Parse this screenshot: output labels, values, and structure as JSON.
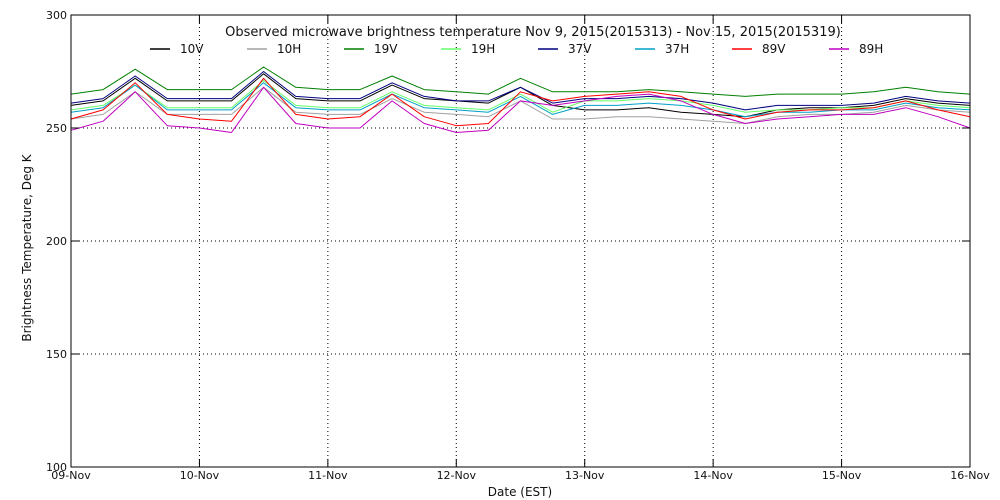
{
  "chart_data": {
    "type": "line",
    "title": "Observed microwave brightness temperature Nov  9, 2015(2015313) - Nov 15, 2015(2015319)",
    "xlabel": "Date (EST)",
    "ylabel": "Brightness Temperature, Deg K",
    "ylim": [
      100,
      300
    ],
    "yticks": [
      100,
      150,
      200,
      250,
      300
    ],
    "xlim": [
      0,
      7
    ],
    "xtick_positions": [
      0,
      1,
      2,
      3,
      4,
      5,
      6,
      7
    ],
    "xtick_labels": [
      "09-Nov",
      "10-Nov",
      "11-Nov",
      "12-Nov",
      "13-Nov",
      "14-Nov",
      "15-Nov",
      "16-Nov"
    ],
    "grid": true,
    "legend_position": "top",
    "x": [
      0,
      0.25,
      0.5,
      0.75,
      1,
      1.25,
      1.5,
      1.75,
      2,
      2.25,
      2.5,
      2.75,
      3,
      3.25,
      3.5,
      3.75,
      4,
      4.25,
      4.5,
      4.75,
      5,
      5.25,
      5.5,
      5.75,
      6,
      6.25,
      6.5,
      6.75,
      7
    ],
    "series": [
      {
        "name": "10V",
        "color": "#000000",
        "values": [
          260,
          262,
          272,
          262,
          262,
          262,
          274,
          263,
          262,
          262,
          269,
          263,
          262,
          261,
          268,
          260,
          258,
          258,
          259,
          257,
          256,
          255,
          258,
          259,
          259,
          260,
          263,
          261,
          260
        ]
      },
      {
        "name": "10H",
        "color": "#a0a0a0",
        "values": [
          254,
          256,
          266,
          256,
          256,
          256,
          268,
          257,
          256,
          256,
          263,
          257,
          256,
          255,
          262,
          254,
          254,
          255,
          255,
          254,
          253,
          252,
          255,
          256,
          256,
          257,
          260,
          258,
          257
        ]
      },
      {
        "name": "19V",
        "color": "#008000",
        "values": [
          265,
          267,
          276,
          267,
          267,
          267,
          277,
          268,
          267,
          267,
          273,
          267,
          266,
          265,
          272,
          266,
          266,
          266,
          267,
          266,
          265,
          264,
          265,
          265,
          265,
          266,
          268,
          266,
          265
        ]
      },
      {
        "name": "19H",
        "color": "#66ff66",
        "values": [
          258,
          260,
          269,
          259,
          259,
          259,
          271,
          260,
          259,
          259,
          266,
          260,
          259,
          258,
          265,
          257,
          262,
          262,
          263,
          262,
          260,
          257,
          258,
          258,
          259,
          259,
          262,
          260,
          259
        ]
      },
      {
        "name": "37V",
        "color": "#000080",
        "values": [
          261,
          263,
          273,
          263,
          263,
          263,
          275,
          264,
          263,
          263,
          270,
          264,
          262,
          262,
          268,
          261,
          263,
          263,
          264,
          263,
          261,
          258,
          260,
          260,
          260,
          261,
          264,
          262,
          261
        ]
      },
      {
        "name": "37H",
        "color": "#00a0c8",
        "values": [
          257,
          259,
          269,
          258,
          258,
          258,
          270,
          259,
          258,
          258,
          265,
          259,
          258,
          257,
          264,
          256,
          260,
          260,
          261,
          260,
          258,
          255,
          257,
          257,
          258,
          258,
          261,
          259,
          258
        ]
      },
      {
        "name": "89V",
        "color": "#ff0000",
        "values": [
          254,
          258,
          270,
          256,
          254,
          253,
          272,
          256,
          254,
          255,
          265,
          255,
          251,
          252,
          266,
          262,
          264,
          265,
          266,
          264,
          258,
          254,
          257,
          258,
          258,
          259,
          262,
          258,
          255
        ]
      },
      {
        "name": "89H",
        "color": "#c000c0",
        "values": [
          249,
          253,
          266,
          251,
          250,
          248,
          268,
          252,
          250,
          250,
          262,
          252,
          248,
          249,
          262,
          260,
          262,
          264,
          265,
          262,
          256,
          252,
          254,
          255,
          256,
          256,
          259,
          255,
          250
        ]
      }
    ]
  }
}
